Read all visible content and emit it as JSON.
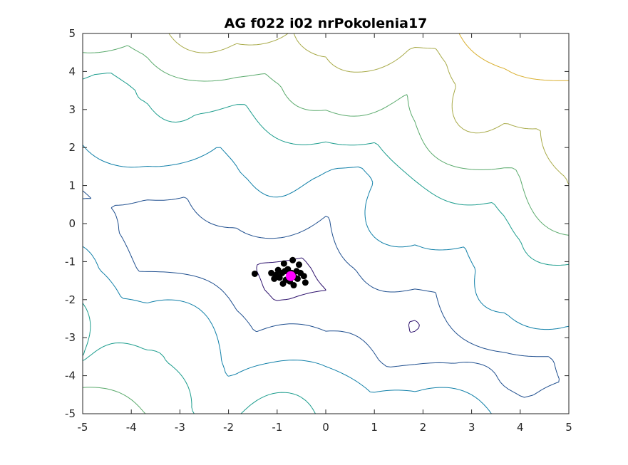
{
  "chart_data": {
    "type": "contour",
    "title": "AG f022 i02 nrPokolenia17",
    "xlabel": "",
    "ylabel": "",
    "xlim": [
      -5,
      5
    ],
    "ylim": [
      -5,
      5
    ],
    "x_ticks": [
      -5,
      -4,
      -3,
      -2,
      -1,
      0,
      1,
      2,
      3,
      4,
      5
    ],
    "y_ticks": [
      -5,
      -4,
      -3,
      -2,
      -1,
      0,
      1,
      2,
      3,
      4,
      5
    ],
    "grid": false,
    "legend": "none",
    "contour_colors": [
      "#2b0f6b",
      "#1f4f8f",
      "#0f7fa8",
      "#1a9c8c",
      "#5aaa6c",
      "#a8aa48",
      "#d8ae2c"
    ],
    "population": [
      {
        "x": -0.78,
        "y": -1.2
      },
      {
        "x": -0.68,
        "y": -0.96
      },
      {
        "x": -0.86,
        "y": -1.05
      },
      {
        "x": -1.12,
        "y": -1.3
      },
      {
        "x": -1.02,
        "y": -1.35
      },
      {
        "x": -0.95,
        "y": -1.42
      },
      {
        "x": -0.9,
        "y": -1.3
      },
      {
        "x": -0.82,
        "y": -1.48
      },
      {
        "x": -0.74,
        "y": -1.52
      },
      {
        "x": -0.66,
        "y": -1.62
      },
      {
        "x": -0.58,
        "y": -1.45
      },
      {
        "x": -0.52,
        "y": -1.3
      },
      {
        "x": -0.45,
        "y": -1.38
      },
      {
        "x": -0.42,
        "y": -1.55
      },
      {
        "x": -0.6,
        "y": -1.25
      },
      {
        "x": -0.55,
        "y": -1.08
      },
      {
        "x": -0.7,
        "y": -1.3
      },
      {
        "x": -0.84,
        "y": -1.25
      },
      {
        "x": -0.98,
        "y": -1.22
      },
      {
        "x": -1.46,
        "y": -1.32
      },
      {
        "x": -0.65,
        "y": -1.4
      },
      {
        "x": -0.88,
        "y": -1.58
      },
      {
        "x": -1.06,
        "y": -1.45
      }
    ],
    "best": {
      "x": -0.72,
      "y": -1.38
    },
    "point_color": "#000000",
    "best_color": "#ff00ff"
  }
}
